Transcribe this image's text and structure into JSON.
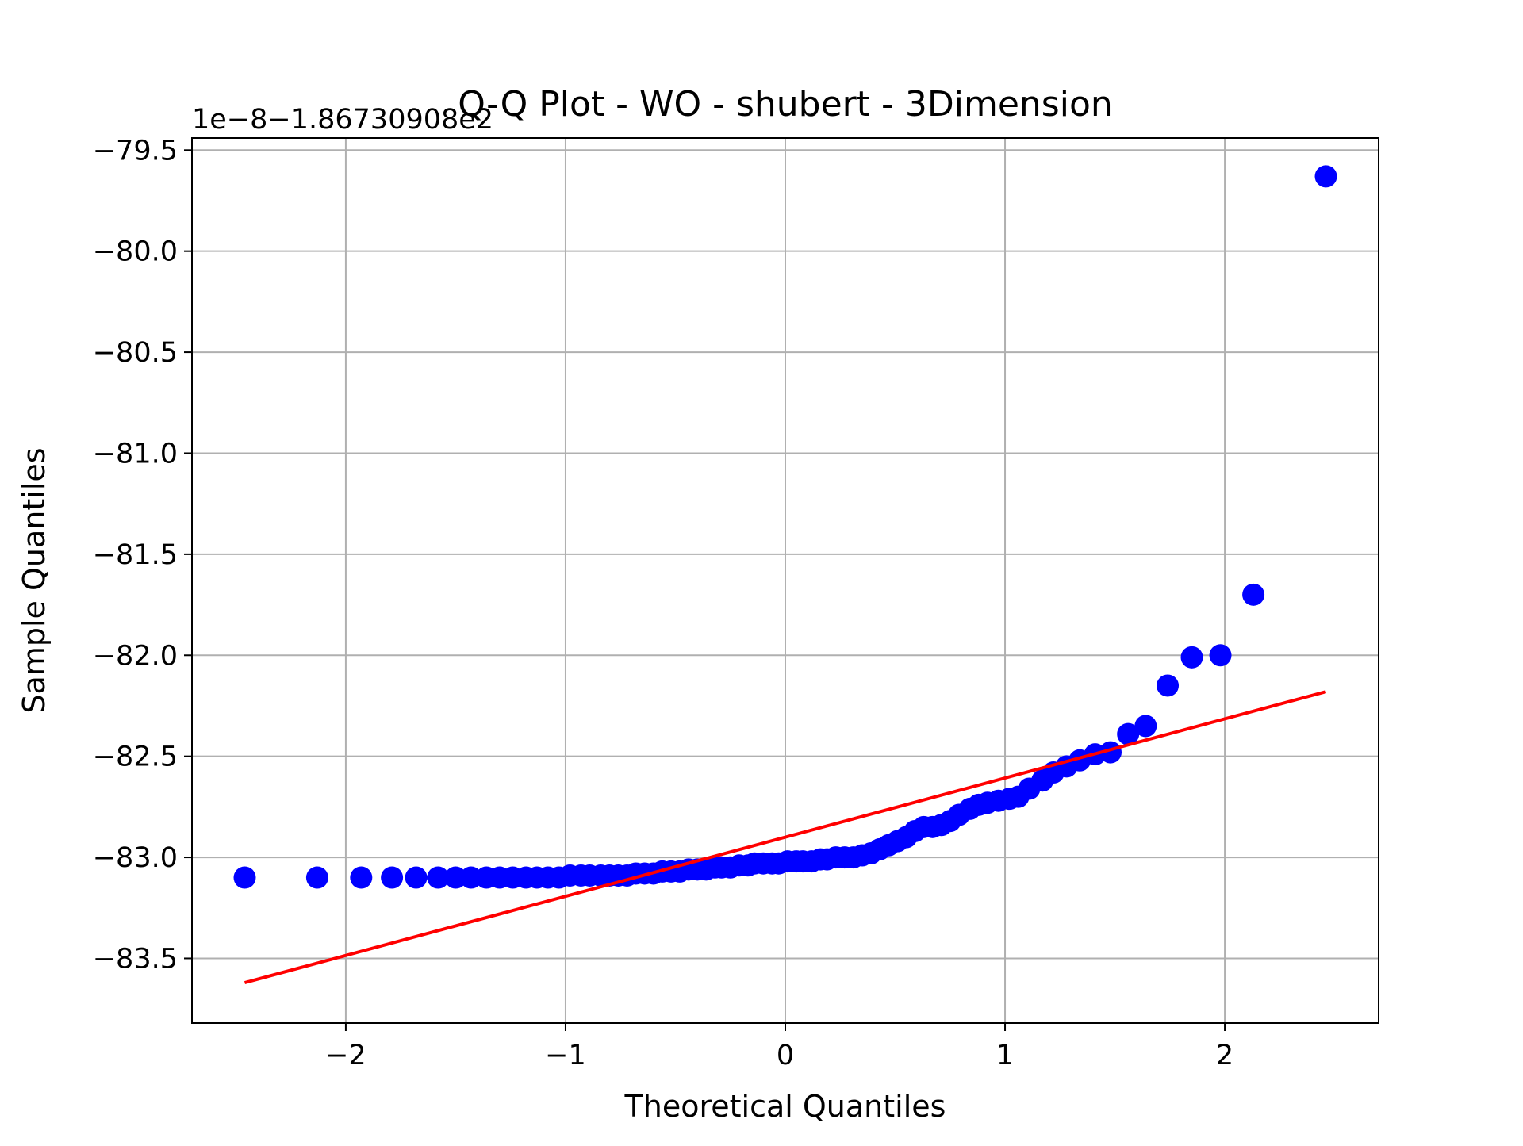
{
  "chart_data": {
    "type": "scatter",
    "title": "Q-Q Plot - WO - shubert - 3Dimension",
    "xlabel": "Theoretical Quantiles",
    "ylabel": "Sample Quantiles",
    "y_offset_text": "1e−8−1.86730908e2",
    "xlim": [
      -2.7,
      2.7
    ],
    "ylim": [
      -83.82,
      -79.44
    ],
    "x_ticks": [
      -2,
      -1,
      0,
      1,
      2
    ],
    "x_tick_labels": [
      "−2",
      "−1",
      "0",
      "1",
      "2"
    ],
    "y_ticks": [
      -79.5,
      -80.0,
      -80.5,
      -81.0,
      -81.5,
      -82.0,
      -82.5,
      -83.0,
      -83.5
    ],
    "y_tick_labels": [
      "−79.5",
      "−80.0",
      "−80.5",
      "−81.0",
      "−81.5",
      "−82.0",
      "−82.5",
      "−83.0",
      "−83.5"
    ],
    "grid": true,
    "colors": {
      "points": "#0000ff",
      "fit_line": "#ff0000",
      "grid": "#b0b0b0"
    },
    "series": [
      {
        "kind": "points",
        "x": [
          -2.46,
          -2.13,
          -1.93,
          -1.79,
          -1.68,
          -1.58,
          -1.5,
          -1.43,
          -1.36,
          -1.3,
          -1.24,
          -1.18,
          -1.13,
          -1.08,
          -1.03,
          -0.98,
          -0.93,
          -0.89,
          -0.84,
          -0.8,
          -0.76,
          -0.72,
          -0.68,
          -0.64,
          -0.6,
          -0.56,
          -0.52,
          -0.48,
          -0.44,
          -0.4,
          -0.36,
          -0.32,
          -0.29,
          -0.25,
          -0.21,
          -0.17,
          -0.14,
          -0.1,
          -0.06,
          -0.03,
          0.01,
          0.05,
          0.08,
          0.12,
          0.16,
          0.19,
          0.23,
          0.27,
          0.31,
          0.35,
          0.39,
          0.43,
          0.47,
          0.51,
          0.55,
          0.59,
          0.63,
          0.67,
          0.71,
          0.75,
          0.79,
          0.84,
          0.88,
          0.92,
          0.97,
          1.02,
          1.06,
          1.11,
          1.17,
          1.22,
          1.28,
          1.34,
          1.41,
          1.48,
          1.56,
          1.64,
          1.74,
          1.85,
          1.98,
          2.13,
          2.46
        ],
        "y": [
          -83.1,
          -83.1,
          -83.1,
          -83.1,
          -83.1,
          -83.1,
          -83.1,
          -83.1,
          -83.1,
          -83.1,
          -83.1,
          -83.1,
          -83.1,
          -83.1,
          -83.1,
          -83.09,
          -83.09,
          -83.09,
          -83.09,
          -83.09,
          -83.09,
          -83.09,
          -83.08,
          -83.08,
          -83.08,
          -83.07,
          -83.07,
          -83.07,
          -83.06,
          -83.06,
          -83.06,
          -83.05,
          -83.05,
          -83.05,
          -83.04,
          -83.04,
          -83.03,
          -83.03,
          -83.03,
          -83.03,
          -83.02,
          -83.02,
          -83.02,
          -83.02,
          -83.01,
          -83.01,
          -83.0,
          -83.0,
          -83.0,
          -82.99,
          -82.98,
          -82.96,
          -82.94,
          -82.92,
          -82.9,
          -82.87,
          -82.85,
          -82.85,
          -82.84,
          -82.82,
          -82.79,
          -82.76,
          -82.74,
          -82.73,
          -82.72,
          -82.71,
          -82.7,
          -82.66,
          -82.62,
          -82.58,
          -82.55,
          -82.52,
          -82.49,
          -82.48,
          -82.39,
          -82.35,
          -82.15,
          -82.01,
          -82.0,
          -81.7,
          -79.63
        ]
      },
      {
        "kind": "line",
        "x": [
          -2.46,
          2.46
        ],
        "y": [
          -83.62,
          -82.18
        ]
      }
    ]
  }
}
